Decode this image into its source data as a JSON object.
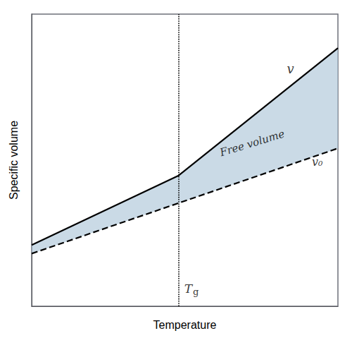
{
  "chart_data": {
    "type": "line",
    "xlabel": "Temperature",
    "ylabel": "Specific volume",
    "xlim": [
      0.0,
      1.0
    ],
    "ylim": [
      0.12,
      0.98
    ],
    "xticks": [],
    "yticks": [],
    "tick_labels": false,
    "grid": false,
    "series": [
      {
        "x": [
          0.0,
          0.48,
          1.0
        ],
        "values": [
          0.3,
          0.505,
          0.88
        ],
        "color": "#000000",
        "line_style": "solid"
      },
      {
        "x": [
          0.0,
          1.0
        ],
        "values": [
          0.275,
          0.585
        ],
        "color": "#000000",
        "line_style": "dashed"
      }
    ],
    "shaded": {
      "upper": 0,
      "lower": 1,
      "color": "#aec6d8",
      "text": "Free volume"
    },
    "reference_lines": [
      {
        "x": 0.48,
        "line_style": "dotted",
        "color": "#000000",
        "label": "Tg"
      }
    ],
    "annotations": [
      {
        "text": "v"
      },
      {
        "text": "v₀"
      }
    ]
  }
}
